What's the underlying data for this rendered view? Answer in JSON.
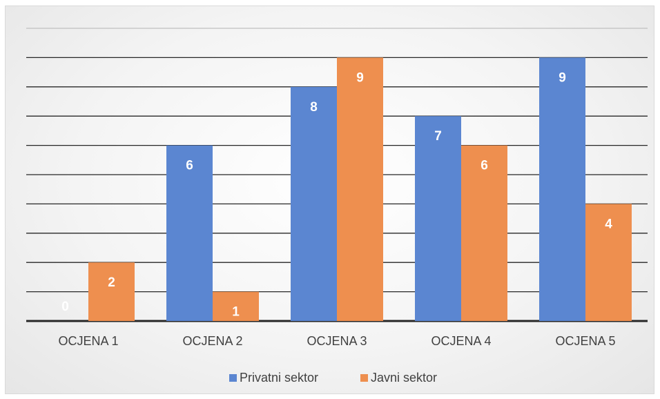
{
  "chart_data": {
    "type": "bar",
    "categories": [
      "OCJENA 1",
      "OCJENA 2",
      "OCJENA 3",
      "OCJENA 4",
      "OCJENA 5"
    ],
    "series": [
      {
        "name": "Privatni sektor",
        "values": [
          0,
          6,
          8,
          7,
          9
        ],
        "color": "#5b86d1"
      },
      {
        "name": "Javni sektor",
        "values": [
          2,
          1,
          9,
          6,
          4
        ],
        "color": "#ee8f4f"
      }
    ],
    "ylim": [
      0,
      10
    ],
    "grid": true,
    "legend_position": "bottom",
    "data_labels": true
  }
}
